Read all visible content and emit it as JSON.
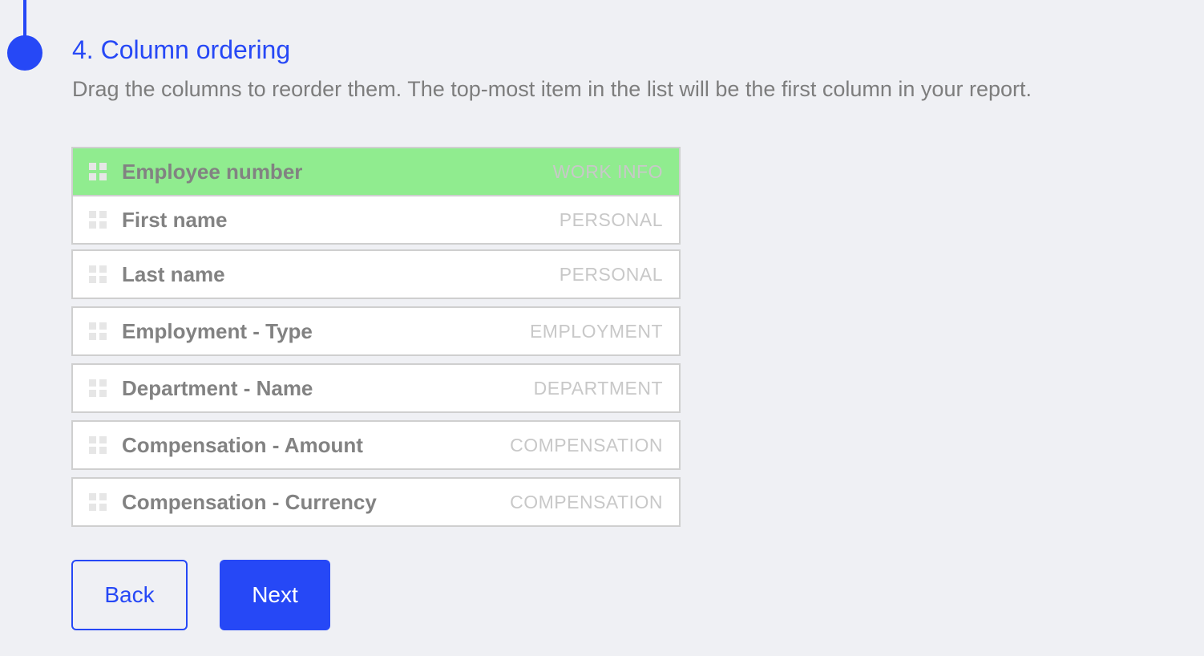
{
  "step": {
    "title": "4. Column ordering",
    "description": "Drag the columns to reorder them. The top-most item in the list will be the first column in your report."
  },
  "columns": [
    {
      "name": "Employee number",
      "category": "WORK INFO",
      "dragging": true
    },
    {
      "name": "First name",
      "category": "PERSONAL"
    },
    {
      "name": "Last name",
      "category": "PERSONAL"
    },
    {
      "name": "Employment - Type",
      "category": "EMPLOYMENT"
    },
    {
      "name": "Department - Name",
      "category": "DEPARTMENT"
    },
    {
      "name": "Compensation - Amount",
      "category": "COMPENSATION"
    },
    {
      "name": "Compensation - Currency",
      "category": "COMPENSATION"
    }
  ],
  "buttons": {
    "back": "Back",
    "next": "Next"
  },
  "colors": {
    "accent": "#2648f6",
    "dragging": "#90ec8f"
  }
}
